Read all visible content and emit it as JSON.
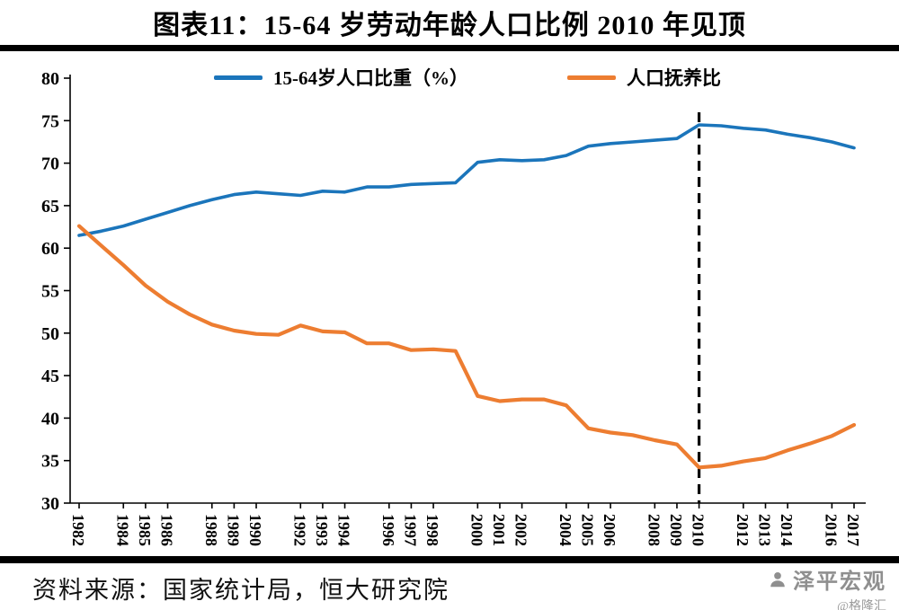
{
  "title": "图表11：15-64 岁劳动年龄人口比例 2010 年见顶",
  "chart_data": {
    "type": "line",
    "title": "图表11：15-64 岁劳动年龄人口比例 2010 年见顶",
    "x": [
      1982,
      1983,
      1984,
      1985,
      1986,
      1987,
      1988,
      1989,
      1990,
      1991,
      1992,
      1993,
      1994,
      1995,
      1996,
      1997,
      1998,
      1999,
      2000,
      2001,
      2002,
      2003,
      2004,
      2005,
      2006,
      2007,
      2008,
      2009,
      2010,
      2011,
      2012,
      2013,
      2014,
      2015,
      2016,
      2017
    ],
    "x_tick_labels": [
      1982,
      1984,
      1985,
      1986,
      1988,
      1989,
      1990,
      1992,
      1993,
      1994,
      1996,
      1997,
      1998,
      2000,
      2001,
      2002,
      2004,
      2005,
      2006,
      2008,
      2009,
      2010,
      2012,
      2013,
      2014,
      2016,
      2017
    ],
    "ylim": [
      30,
      80
    ],
    "y_ticks": [
      30,
      35,
      40,
      45,
      50,
      55,
      60,
      65,
      70,
      75,
      80
    ],
    "grid": false,
    "legend_position": "top-center",
    "vline": {
      "x": 2010,
      "style": "dashed",
      "color": "#000000"
    },
    "series": [
      {
        "name": "15-64岁人口比重（%）",
        "color": "#1b75bb",
        "width": 3.6,
        "values": [
          61.5,
          62.0,
          62.6,
          63.4,
          64.2,
          65.0,
          65.7,
          66.3,
          66.6,
          66.4,
          66.2,
          66.7,
          66.6,
          67.2,
          67.2,
          67.5,
          67.6,
          67.7,
          70.1,
          70.4,
          70.3,
          70.4,
          70.9,
          72.0,
          72.3,
          72.5,
          72.7,
          72.9,
          74.5,
          74.4,
          74.1,
          73.9,
          73.4,
          73.0,
          72.5,
          71.8
        ]
      },
      {
        "name": "人口抚养比",
        "color": "#ed7d31",
        "width": 4.2,
        "values": [
          62.6,
          60.3,
          58.0,
          55.6,
          53.7,
          52.2,
          51.0,
          50.3,
          49.9,
          49.8,
          50.9,
          50.2,
          50.1,
          48.8,
          48.8,
          48.0,
          48.1,
          47.9,
          42.6,
          42.0,
          42.2,
          42.2,
          41.5,
          38.8,
          38.3,
          38.0,
          37.4,
          36.9,
          34.2,
          34.4,
          34.9,
          35.3,
          36.2,
          37.0,
          37.9,
          39.2
        ]
      }
    ]
  },
  "footer": {
    "source": "资料来源：国家统计局，恒大研究院"
  },
  "watermark": {
    "brand": "泽平宏观",
    "handle": "@格隆汇"
  }
}
